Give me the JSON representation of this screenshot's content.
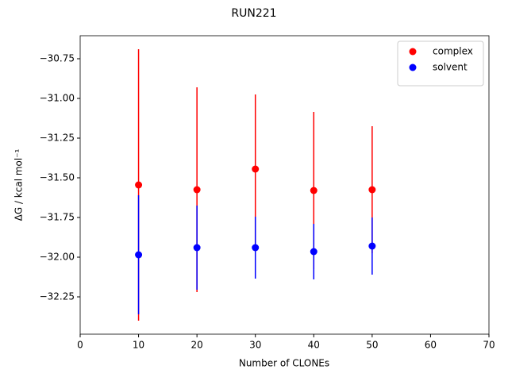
{
  "chart_data": {
    "type": "errorbar_scatter",
    "title": "RUN221",
    "x_label": "Number of CLONEs",
    "y_label": "ΔG / kcal mol⁻¹",
    "x": [
      10,
      20,
      30,
      40,
      50
    ],
    "series": [
      {
        "name": "complex",
        "color": "#ff0000",
        "values": [
          -31.545,
          -31.575,
          -31.445,
          -31.58,
          -31.575
        ],
        "errors": [
          0.855,
          0.645,
          0.47,
          0.495,
          0.4
        ]
      },
      {
        "name": "solvent",
        "color": "#0000ff",
        "values": [
          -31.985,
          -31.94,
          -31.94,
          -31.965,
          -31.93
        ],
        "errors": [
          0.375,
          0.265,
          0.195,
          0.175,
          0.18
        ]
      }
    ],
    "xlim": [
      0,
      70
    ],
    "xticks": [
      0,
      10,
      20,
      30,
      40,
      50,
      60,
      70
    ],
    "ylim": [
      -32.485,
      -30.605
    ],
    "yticks": [
      {
        "value": -32.25,
        "label": "−32.25"
      },
      {
        "value": -32.0,
        "label": "−32.00"
      },
      {
        "value": -31.75,
        "label": "−31.75"
      },
      {
        "value": -31.5,
        "label": "−31.50"
      },
      {
        "value": -31.25,
        "label": "−31.25"
      },
      {
        "value": -31.0,
        "label": "−31.00"
      },
      {
        "value": -30.75,
        "label": "−30.75"
      }
    ],
    "legend": "upper right",
    "grid": false
  }
}
